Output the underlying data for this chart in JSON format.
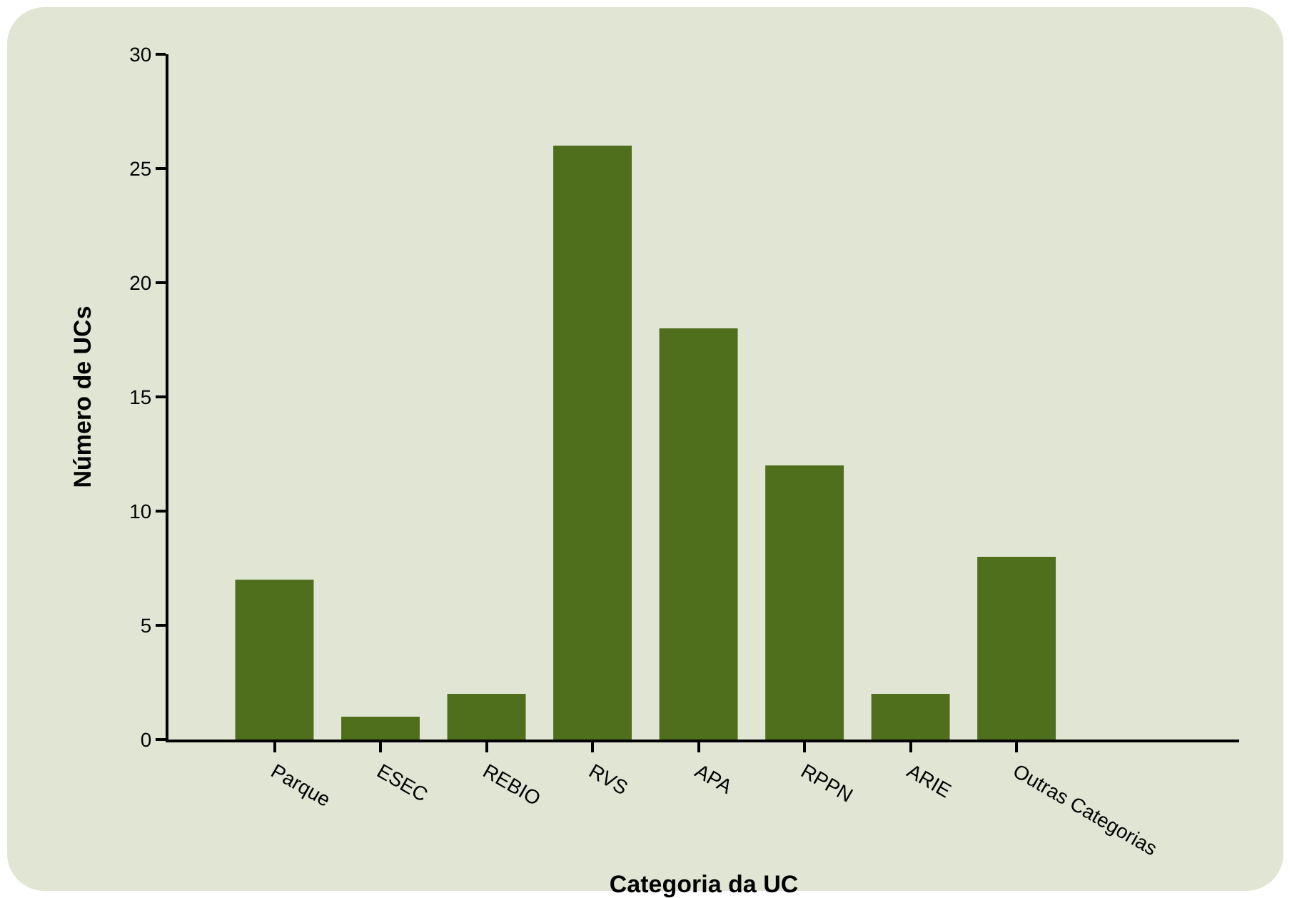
{
  "chart_data": {
    "type": "bar",
    "xlabel": "Categoria da UC",
    "ylabel": "Número de UCs",
    "categories": [
      "Parque",
      "ESEC",
      "REBIO",
      "RVS",
      "APA",
      "RPPN",
      "ARIE",
      "Outras Categorias"
    ],
    "values": [
      7,
      1,
      2,
      26,
      18,
      12,
      2,
      8
    ],
    "color": "#4f6f1c",
    "ylim": [
      0,
      30
    ],
    "yticks": [
      0,
      5,
      10,
      15,
      20,
      25,
      30
    ],
    "grid": false,
    "legend": false
  }
}
